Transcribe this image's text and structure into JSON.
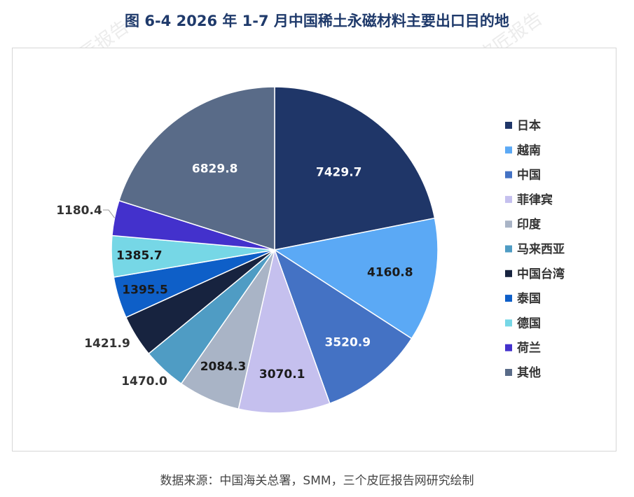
{
  "page": {
    "title": "图  6-4 2026 年 1-7 月中国稀土永磁材料主要出口目的地",
    "source": "数据来源：中国海关总署，SMM，三个皮匠报告网研究绘制",
    "watermark": "三个皮匠报告"
  },
  "chart_data": {
    "type": "pie",
    "title": "图  6-4 2026 年 1-7 月中国稀土永磁材料主要出口目的地",
    "legend_position": "right",
    "categories": [
      "日本",
      "越南",
      "中国",
      "菲律宾",
      "印度",
      "马来西亚",
      "中国台湾",
      "泰国",
      "德国",
      "荷兰",
      "其他"
    ],
    "values": [
      7429.7,
      4160.8,
      3520.9,
      3070.1,
      2084.3,
      1470.0,
      1421.9,
      1395.5,
      1385.7,
      1180.4,
      6829.8
    ],
    "labels": [
      "7429.7",
      "4160.8",
      "3520.9",
      "3070.1",
      "2084.3",
      "1470.0",
      "1421.9",
      "1395.5",
      "1385.7",
      "1180.4",
      "6829.8"
    ],
    "colors": [
      "#1f3668",
      "#5ba9f5",
      "#4472c4",
      "#c5c0ee",
      "#a9b4c6",
      "#4f9cc4",
      "#17233f",
      "#0e5fc8",
      "#76d7e6",
      "#4331cc",
      "#596b88"
    ]
  }
}
